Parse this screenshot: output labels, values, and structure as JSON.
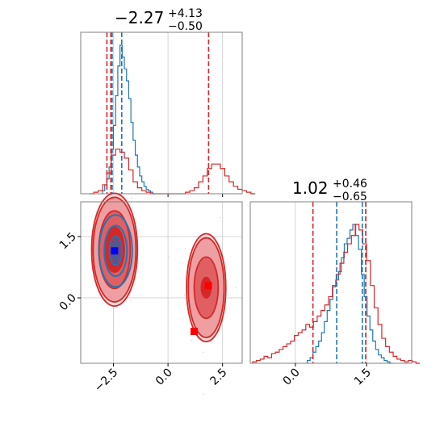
{
  "chart_data": [
    {
      "type": "histogram",
      "panel": "top-left",
      "title": {
        "main": "−2.27",
        "sup": "+4.13",
        "sub": "−0.50"
      },
      "xlim": [
        -4.0,
        3.4
      ],
      "grid": true,
      "vlines": [
        {
          "color": "#d62728",
          "x": [
            -2.8,
            -2.62,
            1.86
          ]
        },
        {
          "color": "#1f77b4",
          "x": [
            -2.56,
            -2.12
          ]
        }
      ],
      "series": [
        {
          "color": "#1f77b4",
          "bins_start": -3.0,
          "bin_width": 0.1,
          "values": [
            2,
            6,
            10,
            18,
            30,
            46,
            66,
            86,
            100,
            92,
            84,
            76,
            64,
            48,
            36,
            26,
            18,
            12,
            8,
            5,
            3,
            2,
            1,
            0
          ]
        },
        {
          "color": "#d62728",
          "bins_start": -3.6,
          "bin_width": 0.2,
          "values": [
            0,
            1,
            2,
            6,
            14,
            26,
            30,
            28,
            24,
            16,
            8,
            4,
            2,
            1,
            0,
            0,
            0,
            0,
            0,
            0,
            0,
            0,
            1,
            2,
            4,
            8,
            12,
            17,
            20,
            20,
            17,
            12,
            8,
            5,
            3,
            2,
            1,
            0
          ]
        }
      ]
    },
    {
      "type": "contour",
      "panel": "bottom-left",
      "xlim": [
        -4.0,
        3.4
      ],
      "ylim": [
        -1.6,
        2.35
      ],
      "xticks": [
        "−2.5",
        "0.0",
        "2.5"
      ],
      "yticks": [
        "0.0",
        "1.5"
      ],
      "grid": true,
      "contours": [
        {
          "color": "#1f77b4",
          "cx": -2.4,
          "cy": 1.15,
          "rx": [
            0.28,
            0.52,
            0.76
          ],
          "ry": [
            0.35,
            0.62,
            0.88
          ]
        },
        {
          "color": "#d62728",
          "cx": -2.45,
          "cy": 1.18,
          "rx": [
            0.45,
            0.72,
            0.98,
            1.05
          ],
          "ry": [
            0.55,
            0.95,
            1.28,
            1.38
          ]
        },
        {
          "color": "#d62728",
          "cx": 1.75,
          "cy": 0.25,
          "rx": [
            0.22,
            0.55,
            0.82,
            0.9
          ],
          "ry": [
            0.25,
            0.75,
            1.22,
            1.32
          ]
        }
      ],
      "markers": [
        {
          "color": "#0000ff",
          "x": -2.45,
          "y": 1.15
        },
        {
          "color": "#ff0000",
          "x": 1.85,
          "y": 0.3
        },
        {
          "color": "#ff0000",
          "x": 1.2,
          "y": -0.82
        }
      ]
    },
    {
      "type": "histogram",
      "panel": "bottom-right",
      "title": {
        "main": "1.02",
        "sup": "+0.46",
        "sub": "−0.65"
      },
      "xlim": [
        -0.95,
        2.45
      ],
      "xticks": [
        "0.0",
        "1.5"
      ],
      "grid": true,
      "vlines": [
        {
          "color": "#d62728",
          "x": [
            0.37,
            1.48
          ]
        },
        {
          "color": "#1f77b4",
          "x": [
            0.87,
            1.41
          ]
        }
      ],
      "series": [
        {
          "color": "#1f77b4",
          "bins_start": 0.25,
          "bin_width": 0.06,
          "values": [
            2,
            4,
            8,
            12,
            16,
            22,
            30,
            38,
            46,
            55,
            60,
            66,
            76,
            86,
            90,
            96,
            100,
            92,
            82,
            64,
            48,
            34,
            24,
            16,
            10,
            6,
            4,
            2,
            1,
            0
          ]
        },
        {
          "color": "#d62728",
          "bins_start": -0.9,
          "bin_width": 0.08,
          "values": [
            1,
            2,
            3,
            5,
            4,
            7,
            8,
            10,
            12,
            14,
            16,
            20,
            22,
            24,
            28,
            26,
            30,
            34,
            38,
            42,
            48,
            56,
            64,
            72,
            80,
            86,
            92,
            100,
            96,
            86,
            74,
            56,
            40,
            28,
            18,
            12,
            8,
            5,
            3,
            2,
            1,
            2,
            1,
            0
          ]
        }
      ]
    }
  ]
}
